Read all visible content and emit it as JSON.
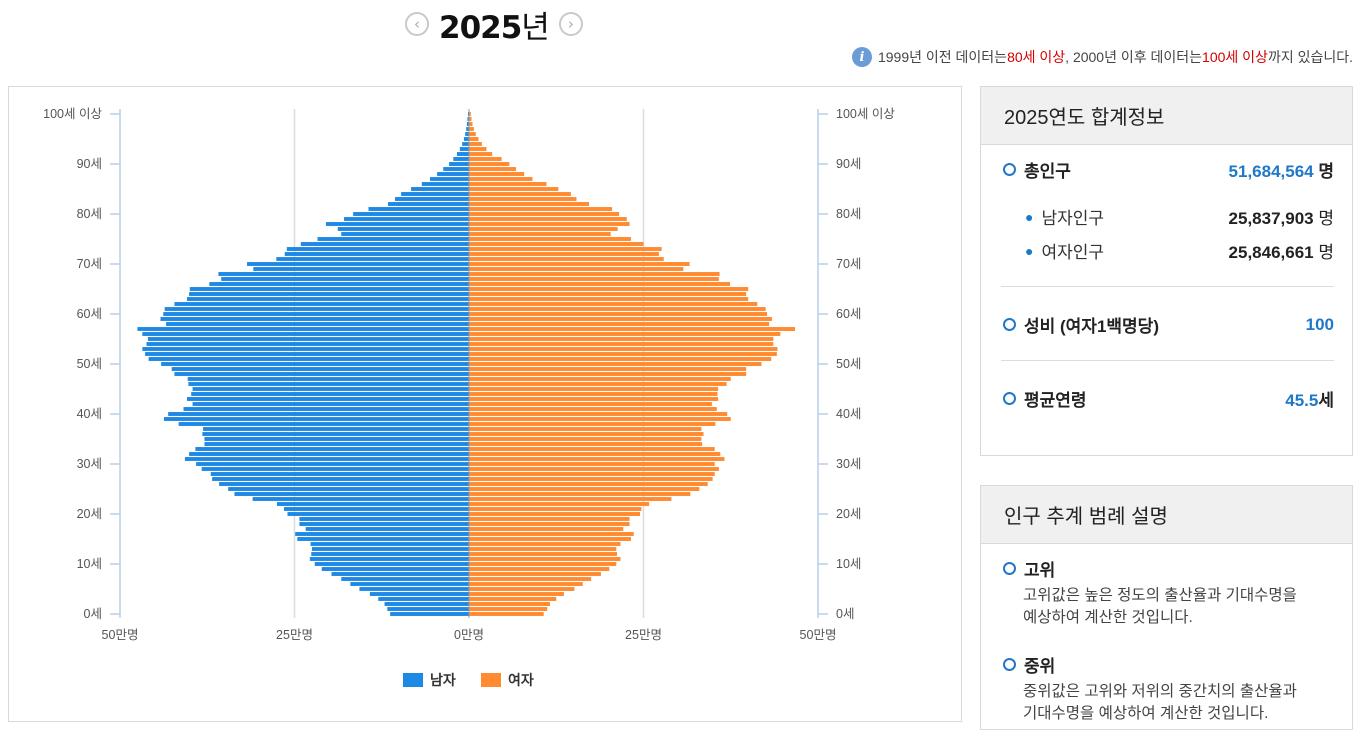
{
  "header": {
    "year": "2025",
    "year_unit": "년",
    "prev_label": "‹",
    "next_label": "›"
  },
  "notice": {
    "p1": "1999년 이전 데이터는 ",
    "h1": "80세 이상",
    "p2": ", 2000년 이후 데이터는 ",
    "h2": "100세 이상",
    "p3": "까지 있습니다."
  },
  "summary": {
    "title": "2025연도 합계정보",
    "total_label": "총인구",
    "total_value": "51,684,564",
    "unit_person": "명",
    "male_label": "남자인구",
    "male_value": "25,837,903",
    "female_label": "여자인구",
    "female_value": "25,846,661",
    "sex_ratio_label": "성비 (여자1백명당)",
    "sex_ratio_value": "100",
    "mean_age_label": "평균연령",
    "mean_age_value": "45.5",
    "mean_age_unit": "세"
  },
  "legend_panel": {
    "title": "인구 추계 범례 설명",
    "items": [
      {
        "name": "고위",
        "desc1": "고위값은 높은 정도의 출산율과 기대수명을",
        "desc2": "예상하여 계산한 것입니다."
      },
      {
        "name": "중위",
        "desc1": "중위값은 고위와 저위의 중간치의 출산율과",
        "desc2": "기대수명을 예상하여 계산한 것입니다."
      }
    ]
  },
  "chart_data": {
    "type": "bar",
    "orientation": "horizontal-pyramid",
    "y_ticks": [
      "0세",
      "10세",
      "20세",
      "30세",
      "40세",
      "50세",
      "60세",
      "70세",
      "80세",
      "90세",
      "100세 이상"
    ],
    "x_tick_labels": [
      "50만명",
      "25만명",
      "0만명",
      "25만명",
      "50만명"
    ],
    "x_max": 500000,
    "grid": true,
    "legend_position": "bottom",
    "colors": {
      "male": "#1e88e5",
      "female": "#ff8a30"
    },
    "series": [
      {
        "name": "남자",
        "values": [
          113000,
          117000,
          121000,
          130000,
          142000,
          157000,
          170000,
          183000,
          197000,
          211000,
          221000,
          228000,
          226000,
          225000,
          227000,
          246000,
          249000,
          234000,
          243000,
          243000,
          260000,
          265000,
          275000,
          310000,
          336000,
          345000,
          358000,
          368000,
          370000,
          383000,
          391000,
          407000,
          401000,
          392000,
          379000,
          379000,
          382000,
          381000,
          416000,
          437000,
          431000,
          409000,
          396000,
          404000,
          398000,
          396000,
          402000,
          403000,
          422000,
          426000,
          441000,
          459000,
          464000,
          468000,
          462000,
          460000,
          468000,
          475000,
          434000,
          442000,
          438000,
          436000,
          422000,
          404000,
          401000,
          400000,
          372000,
          355000,
          359000,
          309000,
          318000,
          276000,
          264000,
          261000,
          241000,
          217000,
          183000,
          188000,
          205000,
          179000,
          166000,
          144000,
          116000,
          106000,
          97200,
          83000,
          67600,
          55800,
          45700,
          36900,
          28500,
          22500,
          17200,
          13100,
          9800,
          7200,
          5400,
          4000,
          3000,
          2200,
          1500
        ]
      },
      {
        "name": "여자",
        "values": [
          107000,
          112000,
          116000,
          125000,
          136000,
          151000,
          163000,
          175000,
          189000,
          201000,
          211000,
          217000,
          212000,
          211000,
          217000,
          232000,
          236000,
          221000,
          230000,
          230000,
          245000,
          247000,
          258000,
          290000,
          317000,
          330000,
          342000,
          349000,
          352000,
          358000,
          352000,
          366000,
          360000,
          352000,
          334000,
          333000,
          336000,
          333000,
          353000,
          375000,
          370000,
          355000,
          348000,
          357000,
          356000,
          357000,
          369000,
          375000,
          397000,
          397000,
          419000,
          433000,
          441000,
          442000,
          436000,
          436000,
          446000,
          467000,
          430000,
          434000,
          427000,
          425000,
          413000,
          400000,
          397000,
          400000,
          374000,
          358000,
          359000,
          307000,
          316000,
          279000,
          272000,
          276000,
          250000,
          232000,
          203000,
          213000,
          230000,
          226000,
          215000,
          205000,
          172000,
          154000,
          146000,
          128000,
          111000,
          90900,
          79000,
          67400,
          57800,
          46700,
          33200,
          25000,
          18500,
          13600,
          9700,
          7000,
          5000,
          3600,
          2600
        ]
      }
    ]
  }
}
